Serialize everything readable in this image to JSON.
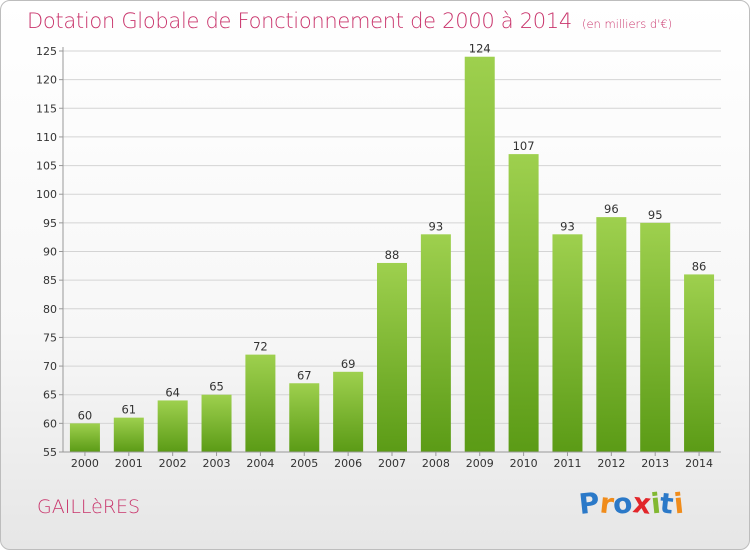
{
  "header": {
    "title": "Dotation Globale de Fonctionnement de 2000 à 2014",
    "subtitle": "(en milliers d'€)"
  },
  "footer": {
    "town": "GAILLèRES",
    "brand": "Proxiti",
    "brand_letters": [
      {
        "ch": "P",
        "color": "#2b79c8"
      },
      {
        "ch": "r",
        "color": "#f08c1b"
      },
      {
        "ch": "o",
        "color": "#2b79c8"
      },
      {
        "ch": "x",
        "color": "#e2262a"
      },
      {
        "ch": "i",
        "color": "#82b832"
      },
      {
        "ch": "t",
        "color": "#2b79c8"
      },
      {
        "ch": "i",
        "color": "#f08c1b"
      }
    ]
  },
  "colors": {
    "bar_top": "#9ed04e",
    "bar_bottom": "#5b9b16",
    "grid": "#d4d4d4",
    "axis": "#999999",
    "text": "#333333",
    "accent": "#c9356c"
  },
  "chart_data": {
    "type": "bar",
    "categories": [
      "2000",
      "2001",
      "2002",
      "2003",
      "2004",
      "2005",
      "2006",
      "2007",
      "2008",
      "2009",
      "2010",
      "2011",
      "2012",
      "2013",
      "2014"
    ],
    "values": [
      60,
      61,
      64,
      65,
      72,
      67,
      69,
      88,
      93,
      124,
      107,
      93,
      96,
      95,
      86
    ],
    "ylim": [
      55,
      125
    ],
    "yticks": [
      55,
      60,
      65,
      70,
      75,
      80,
      85,
      90,
      95,
      100,
      105,
      110,
      115,
      120,
      125
    ],
    "grid": true,
    "data_labels": true
  }
}
